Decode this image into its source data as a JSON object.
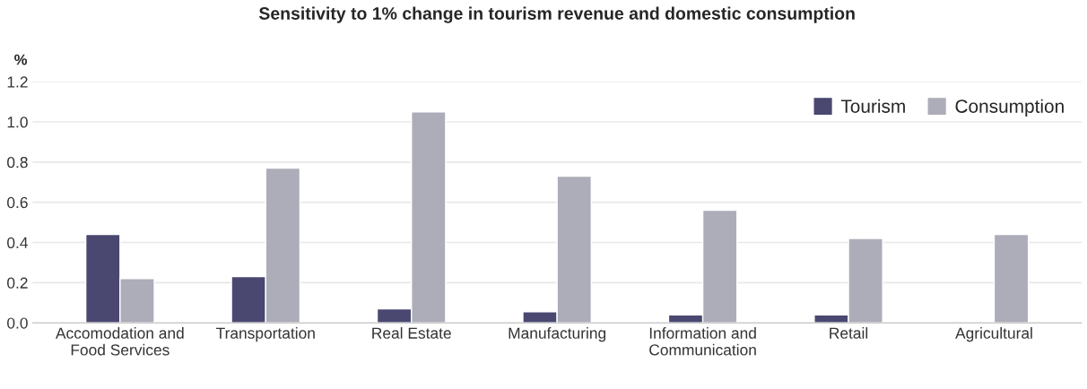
{
  "chart_data": {
    "type": "bar",
    "title": "Sensitivity to 1% change in tourism revenue and domestic consumption",
    "ylabel": "%",
    "categories": [
      "Accomodation and\nFood Services",
      "Transportation",
      "Real Estate",
      "Manufacturing",
      "Information and\nCommunication",
      "Retail",
      "Agricultural"
    ],
    "series": [
      {
        "name": "Tourism",
        "color": "#4a4870",
        "values": [
          0.44,
          0.23,
          0.07,
          0.055,
          0.04,
          0.04,
          null
        ]
      },
      {
        "name": "Consumption",
        "color": "#adadb9",
        "values": [
          0.22,
          0.77,
          1.05,
          0.73,
          0.56,
          0.42,
          0.44
        ]
      }
    ],
    "ylim": [
      0,
      1.2
    ],
    "yticks": [
      {
        "value": 0,
        "label": "0.0"
      },
      {
        "value": 0.2,
        "label": "0.2"
      },
      {
        "value": 0.4,
        "label": "0.4"
      },
      {
        "value": 0.6,
        "label": "0.6"
      },
      {
        "value": 0.8,
        "label": "0.8"
      },
      {
        "value": 1.0,
        "label": "1.0"
      },
      {
        "value": 1.2,
        "label": "1.2"
      }
    ],
    "grid": "y",
    "legend": "top right"
  }
}
